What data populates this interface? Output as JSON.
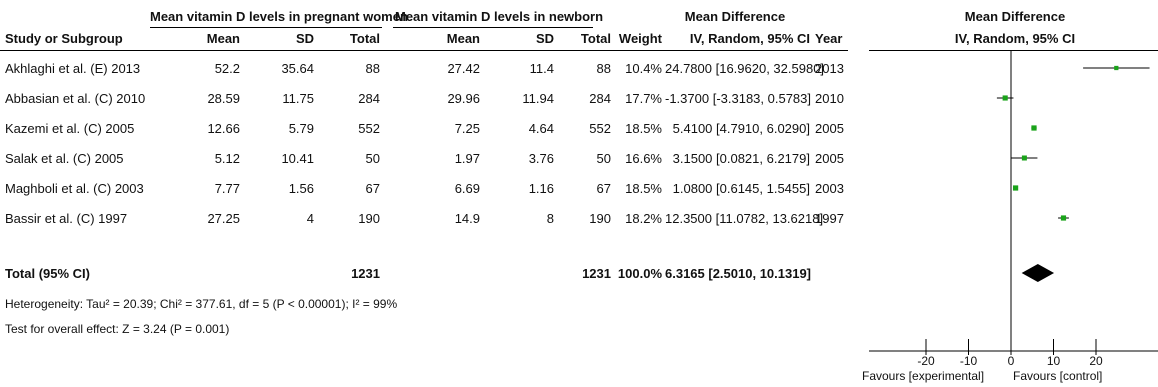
{
  "header": {
    "group_pregnant": "Mean vitamin D levels in pregnant women",
    "group_newborn": "Mean vitamin D levels in newborn",
    "group_md": "Mean Difference",
    "group_plot": "Mean Difference",
    "col_study": "Study or Subgroup",
    "col_mean1": "Mean",
    "col_sd1": "SD",
    "col_total1": "Total",
    "col_mean2": "Mean",
    "col_sd2": "SD",
    "col_total2": "Total",
    "col_weight": "Weight",
    "col_ci": "IV, Random, 95% CI",
    "col_year": "Year",
    "col_plot_ci": "IV, Random, 95% CI"
  },
  "rows": [
    {
      "study": "Akhlaghi et al. (E) 2013",
      "mean1": "52.2",
      "sd1": "35.64",
      "total1": "88",
      "mean2": "27.42",
      "sd2": "11.4",
      "total2": "88",
      "weight": "10.4%",
      "ci": "24.7800 [16.9620, 32.5980]",
      "year": "2013"
    },
    {
      "study": "Abbasian et al. (C) 2010",
      "mean1": "28.59",
      "sd1": "11.75",
      "total1": "284",
      "mean2": "29.96",
      "sd2": "11.94",
      "total2": "284",
      "weight": "17.7%",
      "ci": "-1.3700 [-3.3183, 0.5783]",
      "year": "2010"
    },
    {
      "study": "Kazemi et al. (C) 2005",
      "mean1": "12.66",
      "sd1": "5.79",
      "total1": "552",
      "mean2": "7.25",
      "sd2": "4.64",
      "total2": "552",
      "weight": "18.5%",
      "ci": "5.4100 [4.7910, 6.0290]",
      "year": "2005"
    },
    {
      "study": "Salak et al. (C) 2005",
      "mean1": "5.12",
      "sd1": "10.41",
      "total1": "50",
      "mean2": "1.97",
      "sd2": "3.76",
      "total2": "50",
      "weight": "16.6%",
      "ci": "3.1500 [0.0821, 6.2179]",
      "year": "2005"
    },
    {
      "study": "Maghboli et al. (C) 2003",
      "mean1": "7.77",
      "sd1": "1.56",
      "total1": "67",
      "mean2": "6.69",
      "sd2": "1.16",
      "total2": "67",
      "weight": "18.5%",
      "ci": "1.0800 [0.6145, 1.5455]",
      "year": "2003"
    },
    {
      "study": "Bassir et al. (C) 1997",
      "mean1": "27.25",
      "sd1": "4",
      "total1": "190",
      "mean2": "14.9",
      "sd2": "8",
      "total2": "190",
      "weight": "18.2%",
      "ci": "12.3500 [11.0782, 13.6218]",
      "year": "1997"
    }
  ],
  "total": {
    "label": "Total (95% CI)",
    "total1": "1231",
    "total2": "1231",
    "weight": "100.0%",
    "ci": "6.3165 [2.5010, 10.1319]"
  },
  "footer": {
    "heterogeneity": "Heterogeneity: Tau² = 20.39; Chi² = 377.61, df = 5 (P < 0.00001); I² = 99%",
    "overall_effect": "Test for overall effect: Z = 3.24 (P = 0.001)",
    "favours_left": "Favours [experimental]",
    "favours_right": "Favours [control]"
  },
  "chart_data": {
    "type": "forest",
    "xlim": [
      -20,
      20
    ],
    "x_ticks": [
      "-20",
      "-10",
      "0",
      "10",
      "20"
    ],
    "x_tick_values": [
      -20,
      -10,
      0,
      10,
      20
    ],
    "marker_color": "#1aa31a",
    "studies": [
      {
        "name": "Akhlaghi et al. (E) 2013",
        "md": 24.78,
        "lower": 16.962,
        "upper": 32.598,
        "weight": 10.4
      },
      {
        "name": "Abbasian et al. (C) 2010",
        "md": -1.37,
        "lower": -3.3183,
        "upper": 0.5783,
        "weight": 17.7
      },
      {
        "name": "Kazemi et al. (C) 2005",
        "md": 5.41,
        "lower": 4.791,
        "upper": 6.029,
        "weight": 18.5
      },
      {
        "name": "Salak et al. (C) 2005",
        "md": 3.15,
        "lower": 0.0821,
        "upper": 6.2179,
        "weight": 16.6
      },
      {
        "name": "Maghboli et al. (C) 2003",
        "md": 1.08,
        "lower": 0.6145,
        "upper": 1.5455,
        "weight": 18.5
      },
      {
        "name": "Bassir et al. (C) 1997",
        "md": 12.35,
        "lower": 11.0782,
        "upper": 13.6218,
        "weight": 18.2
      }
    ],
    "pooled": {
      "md": 6.3165,
      "lower": 2.501,
      "upper": 10.1319
    }
  }
}
